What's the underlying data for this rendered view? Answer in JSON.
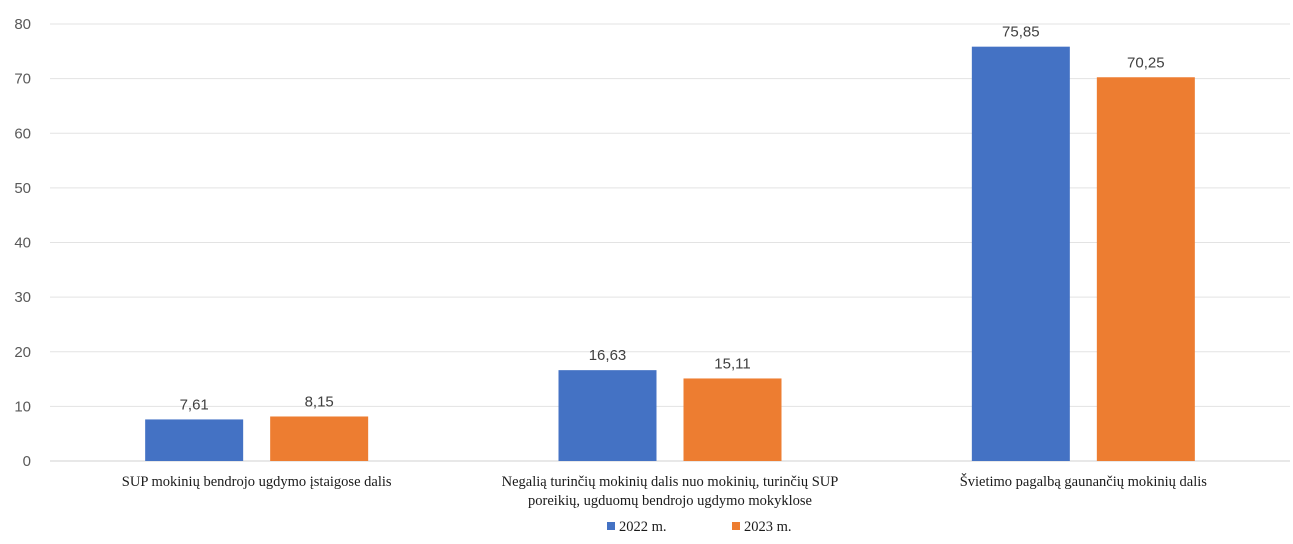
{
  "chart_data": {
    "type": "bar",
    "title": "",
    "xlabel": "",
    "ylabel": "",
    "categories": [
      [
        "SUP mokinių bendrojo ugdymo įstaigose dalis"
      ],
      [
        "Negalią turinčių mokinių dalis nuo mokinių, turinčių SUP",
        "poreikių, ugduomų bendrojo ugdymo mokyklose"
      ],
      [
        "Švietimo pagalbą gaunančių mokinių dalis"
      ]
    ],
    "series": [
      {
        "name": "2022 m.",
        "color": "#4472C4",
        "values": [
          7.61,
          16.63,
          75.85
        ],
        "labels": [
          "7,61",
          "16,63",
          "75,85"
        ]
      },
      {
        "name": "2023 m.",
        "color": "#ED7D31",
        "values": [
          8.15,
          15.11,
          70.25
        ],
        "labels": [
          "8,15",
          "15,11",
          "70,25"
        ]
      }
    ],
    "ylim": [
      0,
      80
    ],
    "yticks": [
      0,
      10,
      20,
      30,
      40,
      50,
      60,
      70,
      80
    ],
    "grid": true,
    "legend_position": "bottom"
  }
}
